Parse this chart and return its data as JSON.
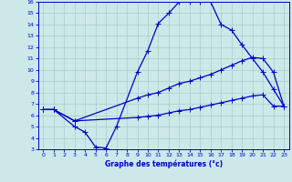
{
  "title": "Graphe des températures (°c)",
  "bg_color": "#cce8e8",
  "grid_color": "#aacccc",
  "line_color": "#0000cc",
  "xlim": [
    -0.5,
    23.5
  ],
  "ylim": [
    3,
    16
  ],
  "xticks": [
    0,
    1,
    2,
    3,
    4,
    5,
    6,
    7,
    8,
    9,
    10,
    11,
    12,
    13,
    14,
    15,
    16,
    17,
    18,
    19,
    20,
    21,
    22,
    23
  ],
  "yticks": [
    3,
    4,
    5,
    6,
    7,
    8,
    9,
    10,
    11,
    12,
    13,
    14,
    15,
    16
  ],
  "line1_x": [
    0,
    1,
    3,
    4,
    5,
    6,
    7,
    9,
    10,
    11,
    12,
    13,
    14,
    15,
    16,
    17,
    18,
    19,
    20,
    21,
    22,
    23
  ],
  "line1_y": [
    6.5,
    6.5,
    5.0,
    4.5,
    3.2,
    3.1,
    5.0,
    9.8,
    11.7,
    14.1,
    15.0,
    16.0,
    16.0,
    16.0,
    16.0,
    14.0,
    13.5,
    12.2,
    11.0,
    9.8,
    8.3,
    6.8
  ],
  "line2_x": [
    0,
    1,
    3,
    9,
    10,
    11,
    12,
    13,
    14,
    15,
    16,
    17,
    18,
    19,
    20,
    21,
    22,
    23
  ],
  "line2_y": [
    6.5,
    6.5,
    5.5,
    7.5,
    7.8,
    8.0,
    8.4,
    8.8,
    9.0,
    9.3,
    9.6,
    10.0,
    10.4,
    10.8,
    11.1,
    11.0,
    9.8,
    6.8
  ],
  "line3_x": [
    0,
    1,
    3,
    9,
    10,
    11,
    12,
    13,
    14,
    15,
    16,
    17,
    18,
    19,
    20,
    21,
    22,
    23
  ],
  "line3_y": [
    6.5,
    6.5,
    5.5,
    5.8,
    5.9,
    6.0,
    6.2,
    6.4,
    6.5,
    6.7,
    6.9,
    7.1,
    7.3,
    7.5,
    7.7,
    7.8,
    6.8,
    6.8
  ]
}
